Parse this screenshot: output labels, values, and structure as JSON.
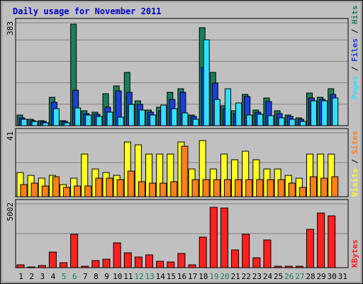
{
  "chart_data": {
    "type": "bar",
    "title": "Daily usage for November 2011",
    "days": [
      "1",
      "2",
      "3",
      "4",
      "5",
      "6",
      "7",
      "8",
      "9",
      "10",
      "11",
      "12",
      "13",
      "14",
      "15",
      "16",
      "17",
      "18",
      "19",
      "20",
      "21",
      "22",
      "23",
      "24",
      "25",
      "26",
      "27",
      "28",
      "29",
      "30",
      "31"
    ],
    "weekend_days": [
      "5",
      "6",
      "12",
      "13",
      "19",
      "20",
      "26",
      "27"
    ],
    "panels": [
      {
        "key": "pages_files_hits",
        "ymax_label": "383",
        "ymax": 383,
        "legend": [
          "Pages",
          "Files",
          "Hits"
        ],
        "series": [
          {
            "name": "Hits",
            "color": "#1a7f5a",
            "values": [
              40,
              25,
              20,
              108,
              20,
              383,
              55,
              50,
              120,
              150,
              200,
              95,
              60,
              70,
              125,
              138,
              40,
              370,
              200,
              75,
              55,
              118,
              60,
              105,
              55,
              40,
              30,
              122,
              108,
              138,
              0
            ]
          },
          {
            "name": "Files",
            "color": "#1a40d8",
            "values": [
              30,
              20,
              15,
              88,
              15,
              135,
              45,
              42,
              70,
              130,
              125,
              80,
              52,
              56,
              100,
              125,
              35,
              220,
              160,
              65,
              45,
              110,
              50,
              90,
              45,
              35,
              25,
              105,
              100,
              118,
              0
            ]
          },
          {
            "name": "Pages",
            "color": "#33dfff",
            "values": [
              25,
              16,
              12,
              63,
              12,
              68,
              40,
              35,
              50,
              32,
              80,
              60,
              40,
              78,
              65,
              48,
              25,
              325,
              100,
              140,
              85,
              40,
              42,
              38,
              30,
              25,
              15,
              95,
              95,
              105,
              0
            ]
          }
        ]
      },
      {
        "key": "visits_sites",
        "ymax_label": "41",
        "ymax": 41,
        "legend": [
          "Visits",
          "Sites"
        ],
        "series": [
          {
            "name": "Visits",
            "color": "#ffff22",
            "values": [
              16,
              14,
              12,
              14,
              8,
              12,
              28,
              18,
              16,
              14,
              36,
              34,
              28,
              28,
              28,
              36,
              18,
              37,
              18,
              28,
              24,
              30,
              24,
              18,
              18,
              14,
              12,
              28,
              28,
              28,
              0
            ]
          },
          {
            "name": "Sites",
            "color": "#ff7f1a",
            "values": [
              8,
              9,
              7,
              13,
              6,
              7,
              7,
              12,
              12,
              11,
              17,
              10,
              9,
              9,
              10,
              33,
              11,
              11,
              11,
              11,
              11,
              11,
              11,
              11,
              11,
              9,
              6,
              13,
              12,
              13,
              0
            ]
          }
        ]
      },
      {
        "key": "kbytes",
        "ymax_label": "5002",
        "ymax": 5002,
        "legend": [
          "KBytes"
        ],
        "series": [
          {
            "name": "KBytes",
            "color": "#ff2020",
            "values": [
              200,
              80,
              160,
              1240,
              380,
              2650,
              130,
              570,
              680,
              1980,
              1190,
              860,
              1000,
              500,
              480,
              1130,
              210,
              2430,
              4850,
              4760,
              1420,
              2650,
              810,
              2240,
              120,
              140,
              120,
              3050,
              4400,
              4130,
              0
            ]
          }
        ]
      }
    ]
  }
}
